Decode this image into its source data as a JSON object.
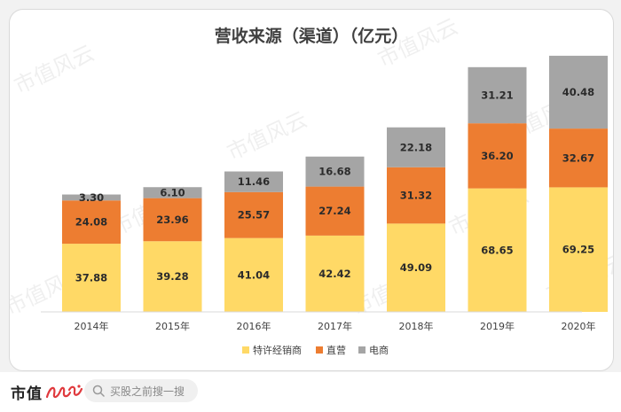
{
  "chart_data": {
    "type": "bar",
    "stacked": true,
    "title": "营收来源（渠道）（亿元）",
    "categories": [
      "2014年",
      "2015年",
      "2016年",
      "2017年",
      "2018年",
      "2019年",
      "2020年"
    ],
    "series": [
      {
        "name": "特许经销商",
        "color": "#ffd966",
        "values": [
          37.88,
          39.28,
          41.04,
          42.42,
          49.09,
          68.65,
          69.25
        ]
      },
      {
        "name": "直营",
        "color": "#ed7d31",
        "values": [
          24.08,
          23.96,
          25.57,
          27.24,
          31.32,
          36.2,
          32.67
        ]
      },
      {
        "name": "电商",
        "color": "#a5a5a5",
        "values": [
          3.3,
          6.1,
          11.46,
          16.68,
          22.18,
          31.21,
          40.48
        ]
      }
    ],
    "value_labels": [
      [
        "37.88",
        "39.28",
        "41.04",
        "42.42",
        "49.09",
        "68.65",
        "69.25"
      ],
      [
        "24.08",
        "23.96",
        "25.57",
        "27.24",
        "31.32",
        "36.20",
        "32.67"
      ],
      [
        "3.30",
        "6.10",
        "11.46",
        "16.68",
        "22.18",
        "31.21",
        "40.48"
      ]
    ],
    "ylim": [
      0,
      145
    ],
    "grid": false,
    "legend_position": "bottom"
  },
  "watermark": {
    "text": "市值风云"
  },
  "footer": {
    "brand": "市值",
    "brand_script_color": "#e03a3e",
    "search_placeholder": "买股之前搜一搜"
  }
}
